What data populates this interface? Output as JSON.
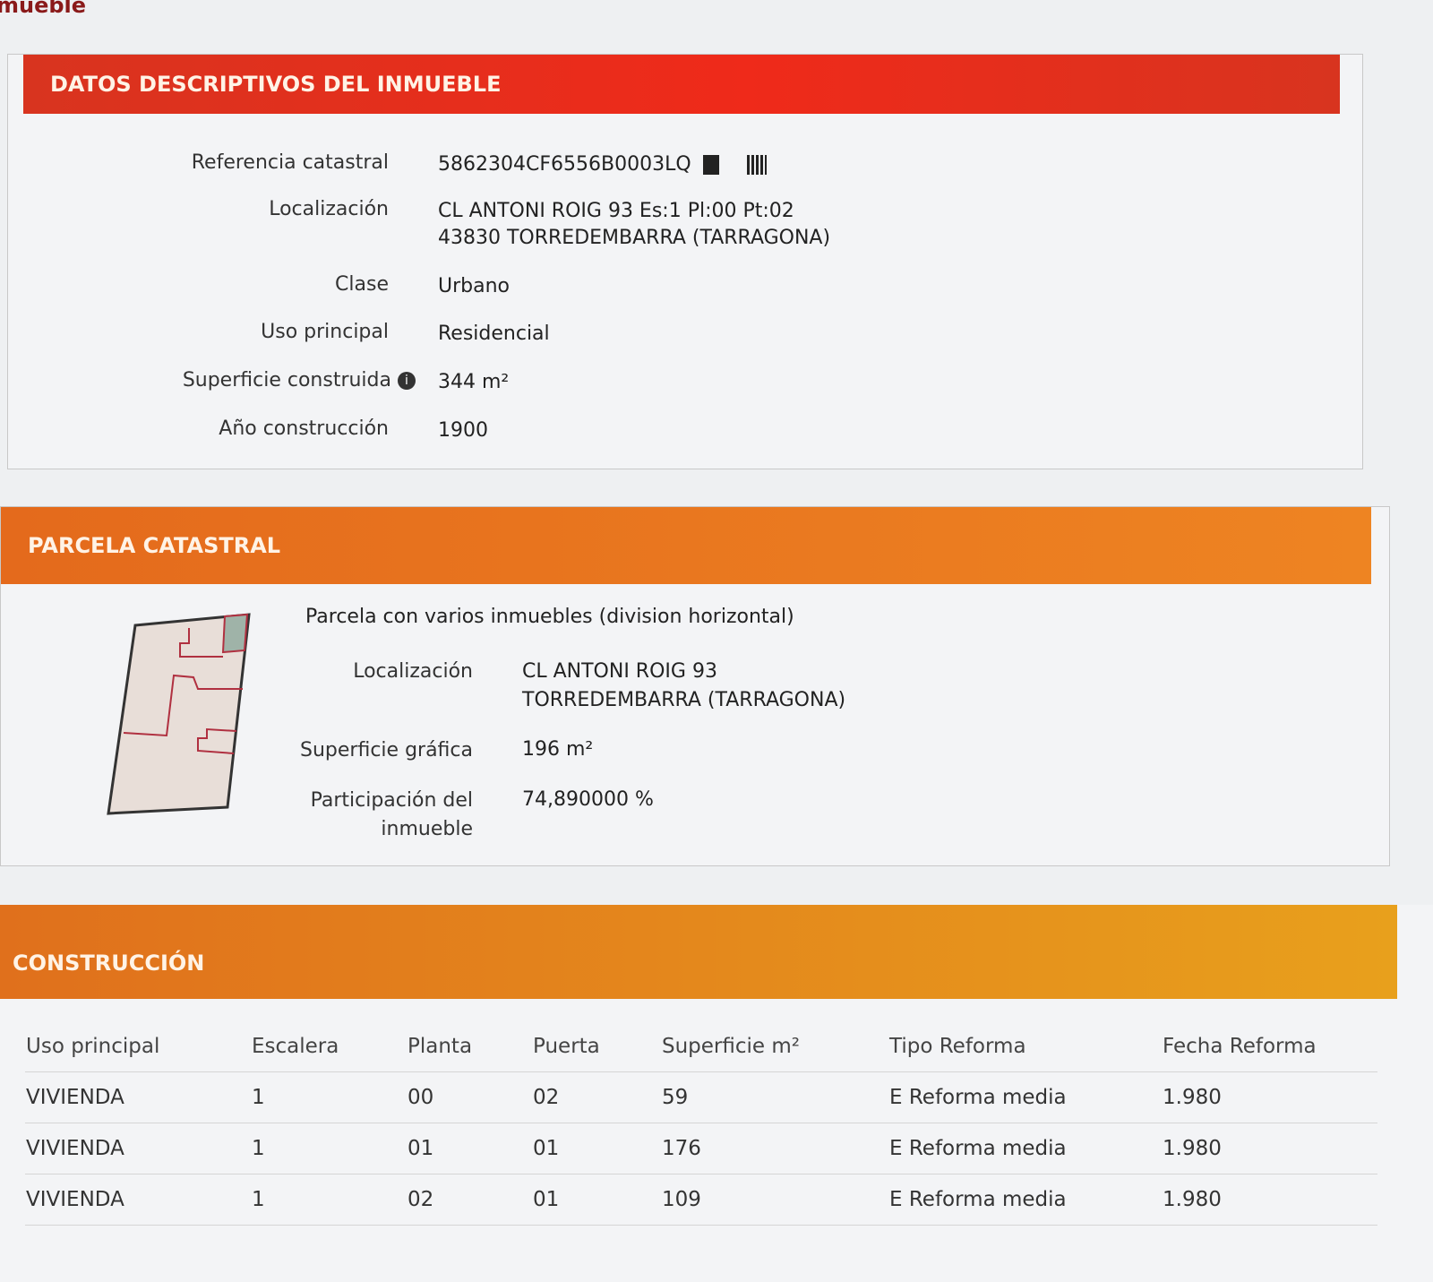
{
  "page_title_fragment": "mueble",
  "datos": {
    "header": "DATOS DESCRIPTIVOS DEL INMUEBLE",
    "fields": [
      {
        "label": "Referencia catastral",
        "value": "5862304CF6556B0003LQ"
      },
      {
        "label": "Localización",
        "value": "CL ANTONI ROIG 93 Es:1 Pl:00 Pt:02",
        "value2": "43830 TORREDEMBARRA (TARRAGONA)"
      },
      {
        "label": "Clase",
        "value": "Urbano"
      },
      {
        "label": "Uso principal",
        "value": "Residencial"
      },
      {
        "label": "Superficie construida",
        "value": "344 m²"
      },
      {
        "label": "Año construcción",
        "value": "1900"
      }
    ],
    "icons": [
      "copy-icon",
      "barcode-icon",
      "info-icon"
    ]
  },
  "parcela": {
    "header": "PARCELA CATASTRAL",
    "subtitle": "Parcela con varios inmuebles (division horizontal)",
    "fields": [
      {
        "label": "Localización",
        "value": "CL ANTONI ROIG 93",
        "value2": "TORREDEMBARRA (TARRAGONA)"
      },
      {
        "label": "Superficie gráfica",
        "value": "196 m²"
      },
      {
        "label": "Participación del inmueble",
        "value": "74,890000 %"
      }
    ]
  },
  "construccion": {
    "header": "CONSTRUCCIÓN",
    "columns": [
      "Uso principal",
      "Escalera",
      "Planta",
      "Puerta",
      "Superficie m²",
      "Tipo Reforma",
      "Fecha Reforma"
    ],
    "rows": [
      [
        "VIVIENDA",
        "1",
        "00",
        "02",
        "59",
        "E Reforma media",
        "1.980"
      ],
      [
        "VIVIENDA",
        "1",
        "01",
        "01",
        "176",
        "E Reforma media",
        "1.980"
      ],
      [
        "VIVIENDA",
        "1",
        "02",
        "01",
        "109",
        "E Reforma media",
        "1.980"
      ]
    ]
  },
  "colors": {
    "header_red": "#e4321e",
    "header_orange": "#e97b1c",
    "header_amber": "#e79a1a"
  }
}
